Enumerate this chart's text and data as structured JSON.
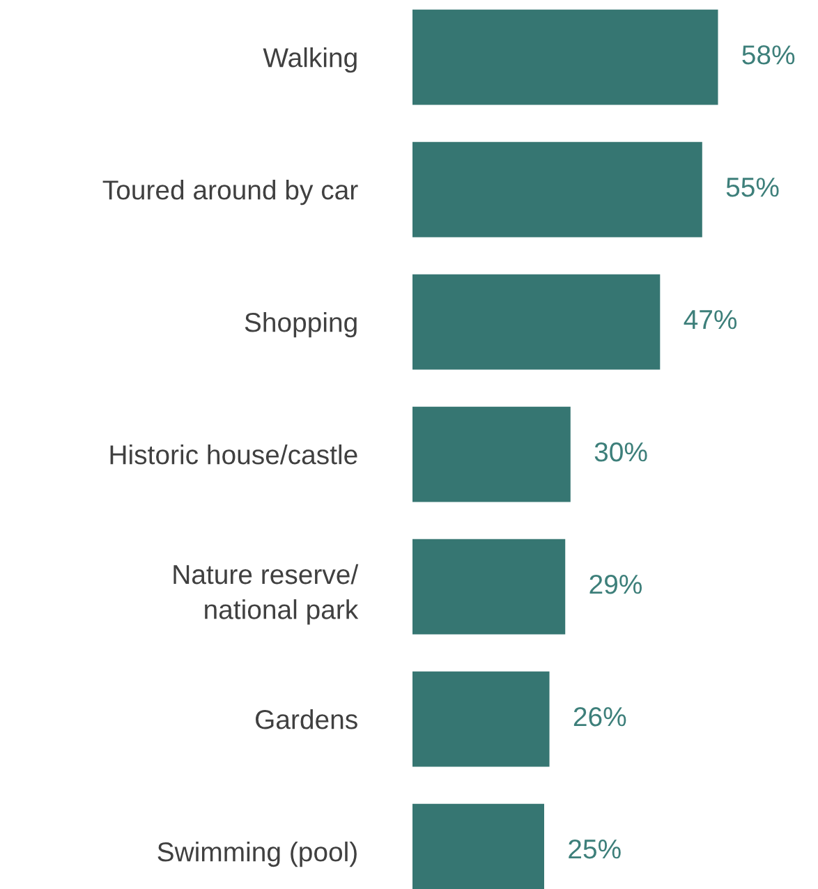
{
  "chart_data": {
    "type": "bar",
    "orientation": "horizontal",
    "categories": [
      "Walking",
      "Toured around by car",
      "Shopping",
      "Historic house/castle",
      "Nature reserve/\nnational park",
      "Gardens",
      "Swimming (pool)"
    ],
    "values": [
      58,
      55,
      47,
      30,
      29,
      26,
      25
    ],
    "value_labels": [
      "58%",
      "55%",
      "47%",
      "30%",
      "29%",
      "26%",
      "25%"
    ],
    "color": "#367672",
    "grid": false,
    "legend": false
  }
}
